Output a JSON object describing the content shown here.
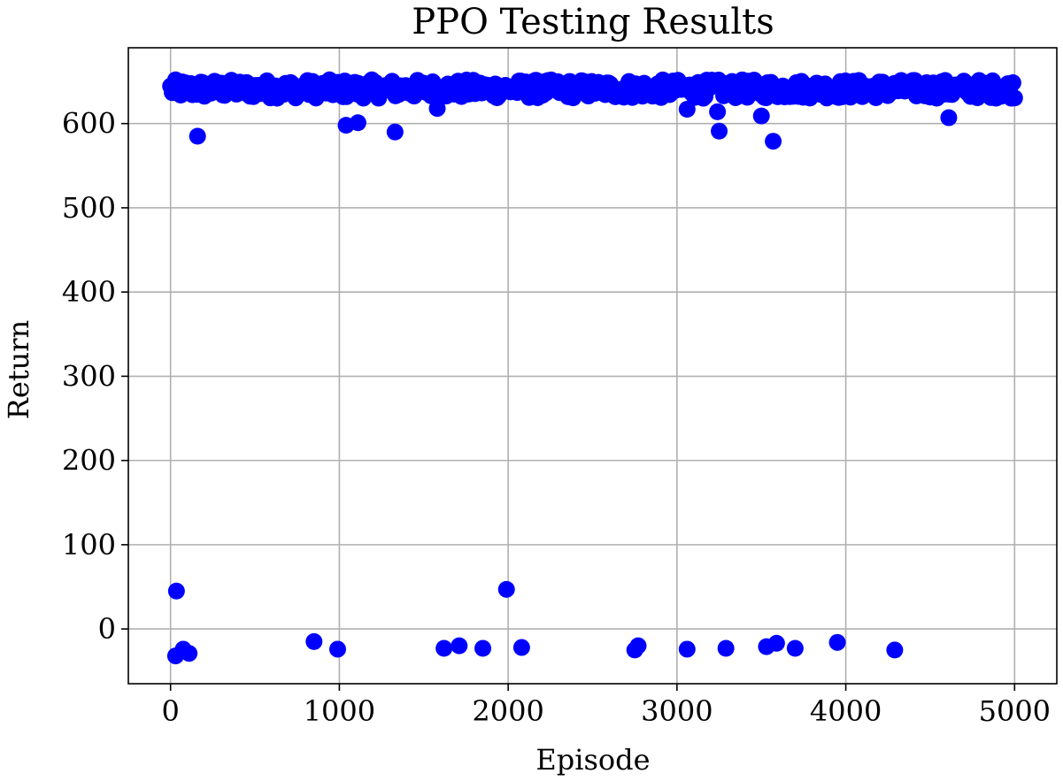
{
  "chart_data": {
    "type": "scatter",
    "title": "PPO Testing Results",
    "xlabel": "Episode",
    "ylabel": "Return",
    "xlim": [
      -250,
      5250
    ],
    "ylim": [
      -65,
      690
    ],
    "xticks": [
      0,
      1000,
      2000,
      3000,
      4000,
      5000
    ],
    "yticks": [
      0,
      100,
      200,
      300,
      400,
      500,
      600
    ],
    "grid": true,
    "marker_color": "#0000ff",
    "series": [
      {
        "band": {
          "x_start": 0,
          "x_end": 5000,
          "y_min": 630,
          "y_max": 652,
          "count": 500
        },
        "outliers": [
          {
            "x": 160,
            "y": 585
          },
          {
            "x": 1040,
            "y": 598
          },
          {
            "x": 1110,
            "y": 601
          },
          {
            "x": 1330,
            "y": 590
          },
          {
            "x": 1580,
            "y": 618
          },
          {
            "x": 3060,
            "y": 617
          },
          {
            "x": 3240,
            "y": 614
          },
          {
            "x": 3250,
            "y": 591
          },
          {
            "x": 3500,
            "y": 609
          },
          {
            "x": 3570,
            "y": 579
          },
          {
            "x": 4610,
            "y": 607
          },
          {
            "x": 35,
            "y": 45
          },
          {
            "x": 30,
            "y": -32
          },
          {
            "x": 75,
            "y": -24
          },
          {
            "x": 110,
            "y": -29
          },
          {
            "x": 850,
            "y": -15
          },
          {
            "x": 990,
            "y": -24
          },
          {
            "x": 1620,
            "y": -23
          },
          {
            "x": 1710,
            "y": -20
          },
          {
            "x": 1850,
            "y": -23
          },
          {
            "x": 1990,
            "y": 47
          },
          {
            "x": 2080,
            "y": -22
          },
          {
            "x": 2750,
            "y": -25
          },
          {
            "x": 2770,
            "y": -20
          },
          {
            "x": 3060,
            "y": -24
          },
          {
            "x": 3290,
            "y": -23
          },
          {
            "x": 3530,
            "y": -21
          },
          {
            "x": 3590,
            "y": -17
          },
          {
            "x": 3700,
            "y": -23
          },
          {
            "x": 3950,
            "y": -16
          },
          {
            "x": 4290,
            "y": -25
          }
        ]
      }
    ]
  }
}
